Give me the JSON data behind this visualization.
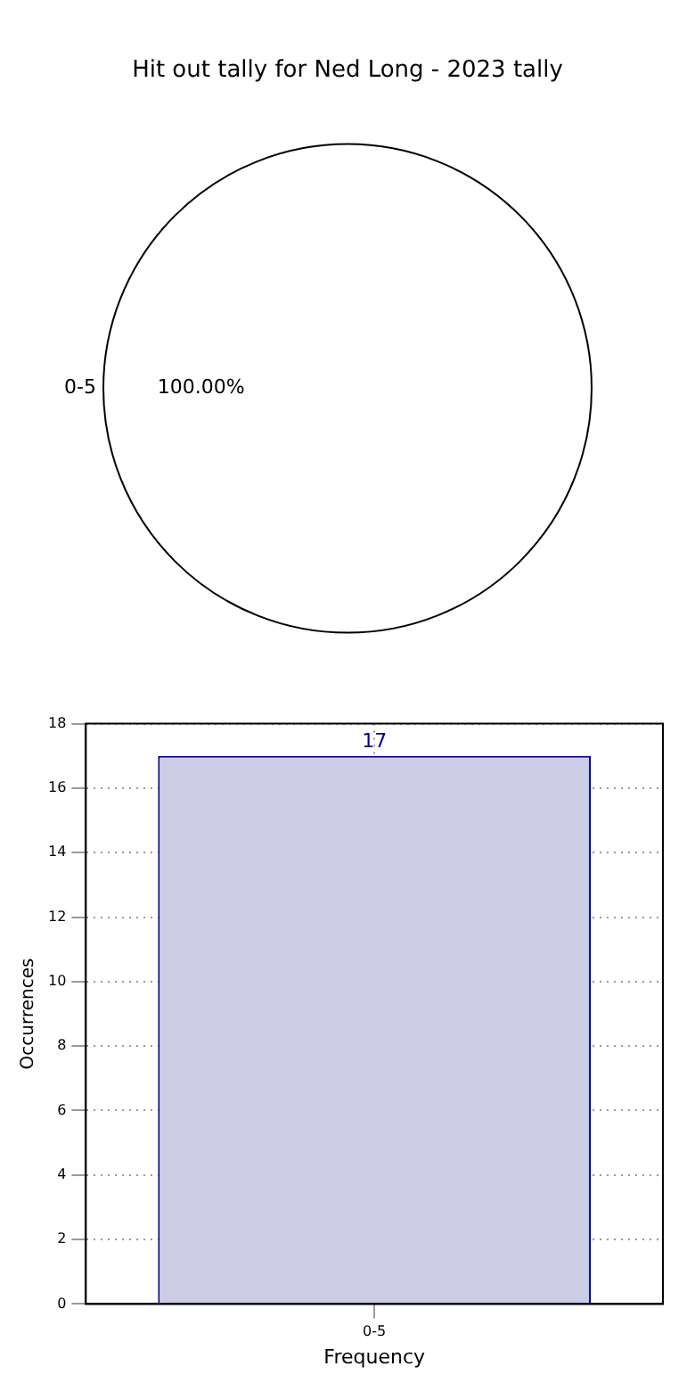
{
  "chart_data": [
    {
      "type": "pie",
      "title": "Hit out tally for Ned Long - 2023 tally",
      "categories": [
        "0-5"
      ],
      "values": [
        100
      ],
      "colors": [
        "#ffffff"
      ],
      "value_labels": [
        "100.00%"
      ]
    },
    {
      "type": "bar",
      "categories": [
        "0-5"
      ],
      "values": [
        17
      ],
      "color": "#ccccE6",
      "data_labels": true,
      "ylim": [
        0,
        18
      ],
      "yticks": [
        0,
        2,
        4,
        6,
        8,
        10,
        12,
        14,
        16,
        18
      ],
      "grid": true,
      "xlabel": "Frequency",
      "ylabel": "Occurrences"
    }
  ]
}
